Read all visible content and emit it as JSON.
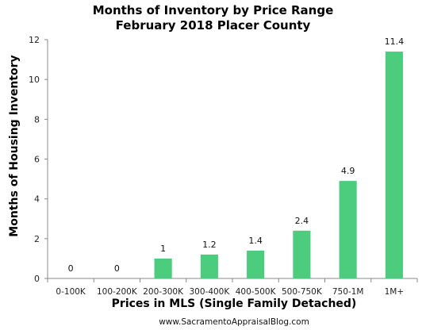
{
  "chart_data": {
    "type": "bar",
    "title": "Months of Inventory by Price Range",
    "subtitle": "February 2018 Placer County",
    "xlabel": "Prices in MLS (Single Family Detached)",
    "ylabel": "Months of Housing Inventory",
    "categories": [
      "0-100K",
      "100-200K",
      "200-300K",
      "300-400K",
      "400-500K",
      "500-750K",
      "750-1M",
      "1M+"
    ],
    "values": [
      0,
      0,
      1,
      1.2,
      1.4,
      2.4,
      4.9,
      11.4
    ],
    "data_labels": [
      "0",
      "0",
      "1",
      "1.2",
      "1.4",
      "2.4",
      "4.9",
      "11.4"
    ],
    "ylim": [
      0,
      12
    ],
    "yticks": [
      0,
      2,
      4,
      6,
      8,
      10,
      12
    ],
    "grid": false,
    "bar_color": "#4ccd7e"
  },
  "footer": "www.SacramentoAppraisalBlog.com"
}
